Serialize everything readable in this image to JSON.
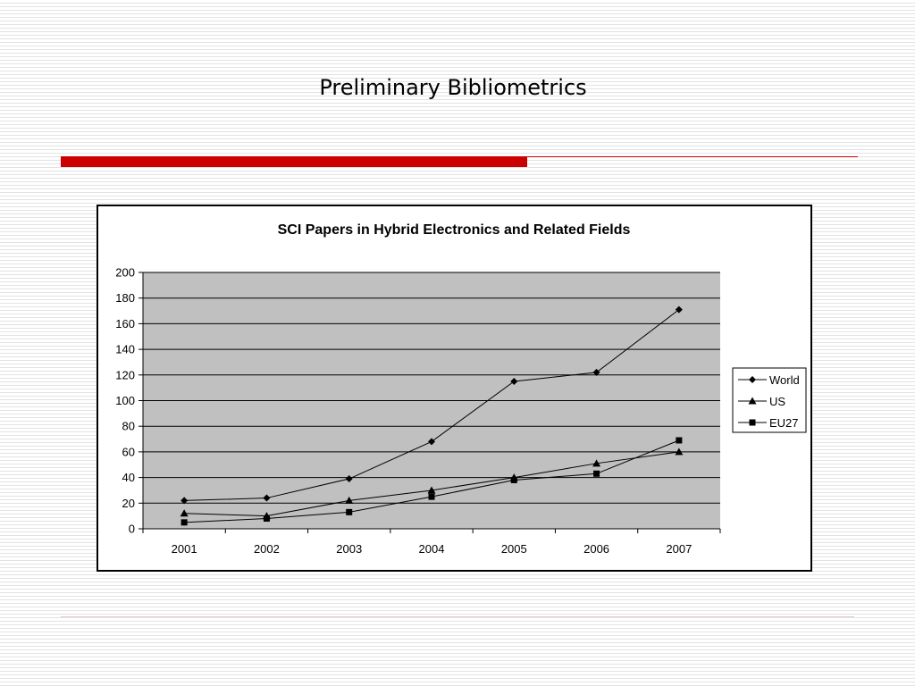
{
  "slide": {
    "title": "Preliminary Bibliometrics"
  },
  "colors": {
    "accent_bar": "#cc0000",
    "plot_background": "#c0c0c0",
    "series_line": "#000000"
  },
  "chart_data": {
    "type": "line",
    "title": "SCI Papers in Hybrid Electronics and Related Fields",
    "xlabel": "",
    "ylabel": "",
    "categories": [
      "2001",
      "2002",
      "2003",
      "2004",
      "2005",
      "2006",
      "2007"
    ],
    "ylim": [
      0,
      200
    ],
    "yticks": [
      "0",
      "20",
      "40",
      "60",
      "80",
      "100",
      "120",
      "140",
      "160",
      "180",
      "200"
    ],
    "grid": true,
    "legend_position": "right",
    "series": [
      {
        "name": "World",
        "marker": "diamond",
        "values": [
          22,
          24,
          39,
          68,
          115,
          122,
          171
        ]
      },
      {
        "name": "US",
        "marker": "triangle",
        "values": [
          12,
          10,
          22,
          30,
          40,
          51,
          60
        ]
      },
      {
        "name": "EU27",
        "marker": "square",
        "values": [
          5,
          8,
          13,
          25,
          38,
          43,
          69
        ]
      }
    ]
  }
}
